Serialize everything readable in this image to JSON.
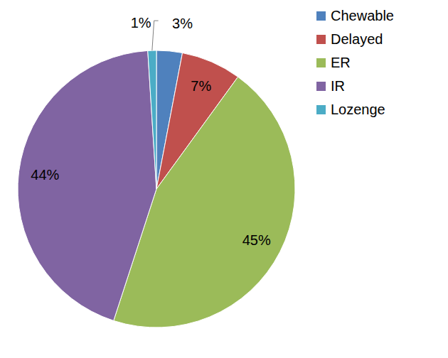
{
  "chart_data": {
    "type": "pie",
    "categories": [
      "Chewable",
      "Delayed",
      "ER",
      "IR",
      "Lozenge"
    ],
    "values": [
      3,
      7,
      45,
      44,
      1
    ],
    "value_labels": [
      "3%",
      "7%",
      "45%",
      "44%",
      "1%"
    ],
    "colors": [
      "#4f81bd",
      "#c0504d",
      "#9bbb59",
      "#8064a2",
      "#4bacc6"
    ],
    "data_labels": true,
    "legend": "top-right"
  }
}
